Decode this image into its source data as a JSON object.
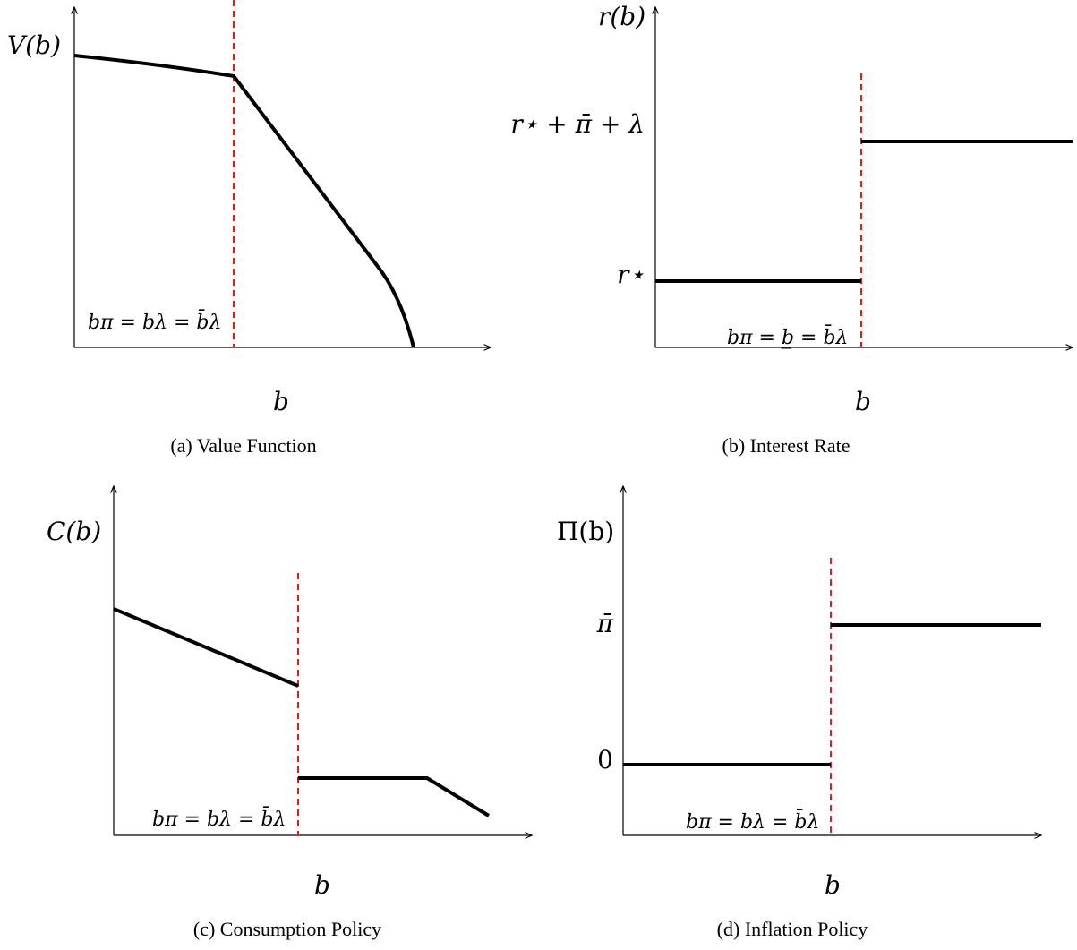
{
  "colors": {
    "curve": "#000000",
    "threshold": "#e21b1b",
    "axis": "#000000"
  },
  "panels": [
    {
      "id": "a",
      "caption": "(a) Value Function",
      "y_label": "V(b)",
      "x_label": "b",
      "threshold_label": "bπ = bλ = b̄λ",
      "shape": "concave declining, kink at threshold"
    },
    {
      "id": "b",
      "caption": "(b) Interest Rate",
      "y_label": "r(b)",
      "x_label": "b",
      "threshold_label": "bπ = b̲ = b̄λ",
      "levels": [
        "r⋆ + π̄ + λ",
        "r⋆"
      ],
      "shape": "step up at threshold"
    },
    {
      "id": "c",
      "caption": "(c) Consumption Policy",
      "y_label": "C(b)",
      "x_label": "b",
      "threshold_label": "bπ = bλ = b̄λ",
      "shape": "declining, drop at threshold, flat then declining"
    },
    {
      "id": "d",
      "caption": "(d) Inflation Policy",
      "y_label": "Π(b)",
      "x_label": "b",
      "threshold_label": "bπ = bλ = b̄λ",
      "levels": [
        "π̄",
        "0"
      ],
      "shape": "step up at threshold"
    }
  ]
}
